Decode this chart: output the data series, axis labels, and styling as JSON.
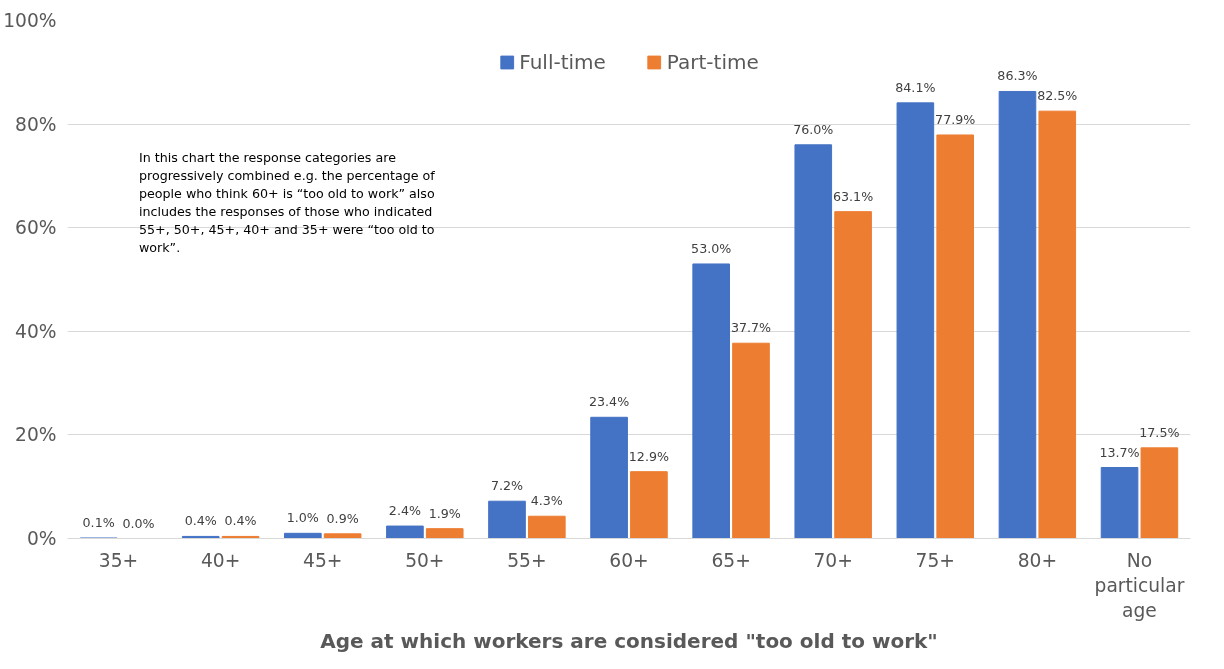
{
  "chart_data": {
    "type": "bar",
    "xlabel": "Age at which workers are considered \"too old to work\"",
    "categories": [
      "35+",
      "40+",
      "45+",
      "50+",
      "55+",
      "60+",
      "65+",
      "70+",
      "75+",
      "80+",
      "No particular age"
    ],
    "series": [
      {
        "name": "Full-time",
        "color": "#4472c4",
        "values": [
          0.1,
          0.4,
          1.0,
          2.4,
          7.2,
          23.4,
          53.0,
          76.0,
          84.1,
          86.3,
          13.7
        ],
        "value_labels": [
          "0.1%",
          "0.4%",
          "1.0%",
          "2.4%",
          "7.2%",
          "23.4%",
          "53.0%",
          "76.0%",
          "84.1%",
          "86.3%",
          "13.7%"
        ]
      },
      {
        "name": "Part-time",
        "color": "#ed7d31",
        "values": [
          0.0,
          0.4,
          0.9,
          1.9,
          4.3,
          12.9,
          37.7,
          63.1,
          77.9,
          82.5,
          17.5
        ],
        "value_labels": [
          "0.0%",
          "0.4%",
          "0.9%",
          "1.9%",
          "4.3%",
          "12.9%",
          "37.7%",
          "63.1%",
          "77.9%",
          "82.5%",
          "17.5%"
        ]
      }
    ],
    "ylim": [
      0,
      100
    ],
    "yticks": [
      {
        "value": 0,
        "label": "0%"
      },
      {
        "value": 20,
        "label": "20%"
      },
      {
        "value": 40,
        "label": "40%"
      },
      {
        "value": 60,
        "label": "60%"
      },
      {
        "value": 80,
        "label": "80%"
      },
      {
        "value": 100,
        "label": "100%"
      }
    ],
    "grid": "y",
    "legend": "top",
    "annotations": [
      "In this chart the response categories are progressively combined e.g. the percentage of people who think 60+ is “too old to work” also includes the responses of those who indicated 55+, 50+, 45+, 40+ and 35+ were “too old to work”."
    ]
  }
}
